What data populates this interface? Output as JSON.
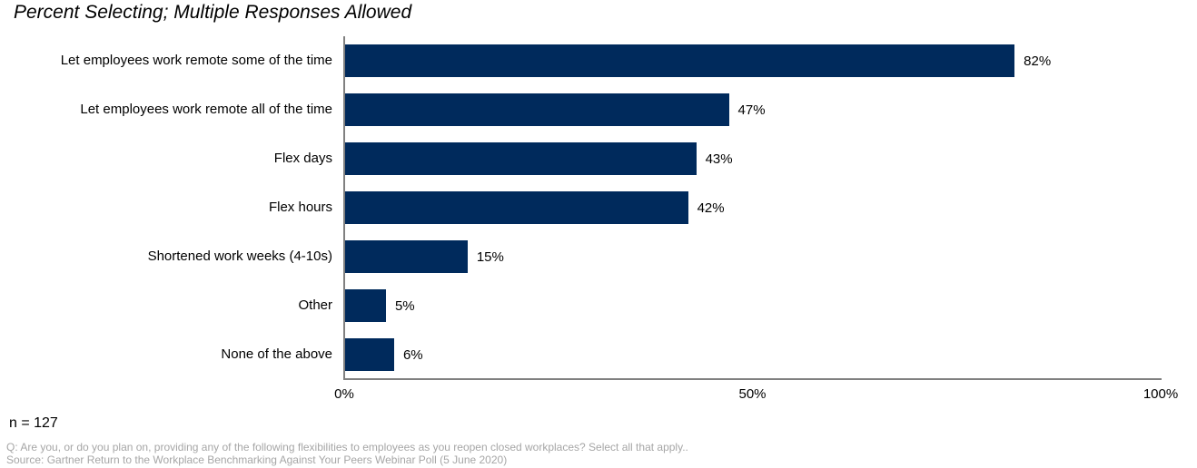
{
  "title": "Percent Selecting; Multiple Responses Allowed",
  "chart_data": {
    "type": "bar",
    "orientation": "horizontal",
    "categories": [
      "Let employees work remote some of the time",
      "Let employees work remote all of the time",
      "Flex days",
      "Flex hours",
      "Shortened work weeks (4-10s)",
      "Other",
      "None of the above"
    ],
    "values": [
      82,
      47,
      43,
      42,
      15,
      5,
      6
    ],
    "value_labels": [
      "82%",
      "47%",
      "43%",
      "42%",
      "15%",
      "5%",
      "6%"
    ],
    "xlabel": "",
    "ylabel": "",
    "xlim": [
      0,
      100
    ],
    "x_ticks": [
      {
        "value": 0,
        "label": "0%"
      },
      {
        "value": 50,
        "label": "50%"
      },
      {
        "value": 100,
        "label": "100%"
      }
    ],
    "grid": false,
    "legend": false,
    "bar_color": "#002a5c",
    "axis_color": "#808080"
  },
  "footer": {
    "n_label": "n = 127",
    "question": "Q: Are you, or do you plan on, providing any of the following flexibilities to employees as you reopen closed workplaces? Select all that apply..",
    "source": "Source: Gartner Return to the Workplace Benchmarking Against Your Peers Webinar Poll (5 June 2020)"
  }
}
